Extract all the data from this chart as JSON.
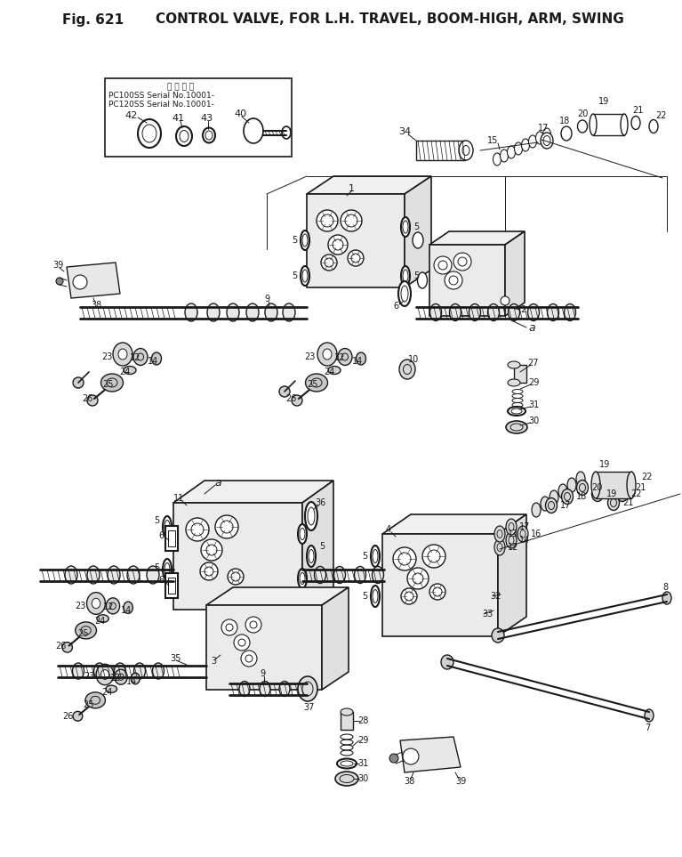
{
  "title_left": "Fig. 621",
  "title_right": "CONTROL VALVE, FOR L.H. TRAVEL, BOOM-HIGH, ARM, SWING",
  "bg_color": "#ffffff",
  "fig_width": 7.67,
  "fig_height": 9.63,
  "dpi": 100,
  "line_color": "#1a1a1a",
  "note_text": [
    "適 用 引 機",
    "PC100SS Serial No.10001-",
    "PC120SS Serial No.10001-"
  ]
}
